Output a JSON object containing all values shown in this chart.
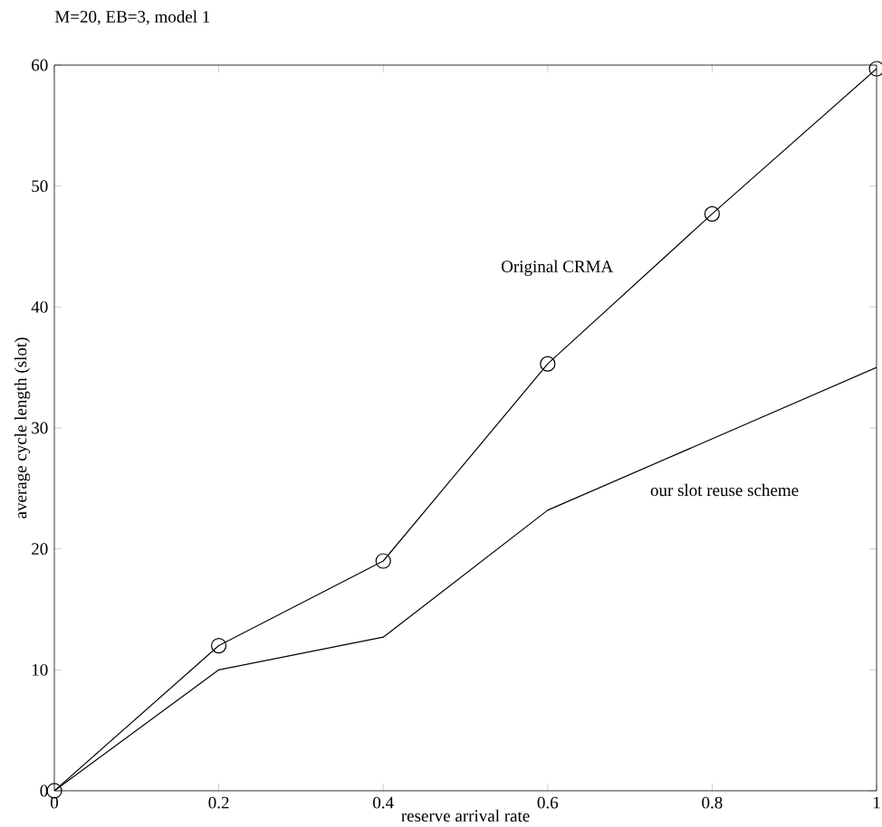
{
  "chart_data": {
    "type": "line",
    "title": "M=20, EB=3, model 1",
    "xlabel": "reserve arrival rate",
    "ylabel": "average cycle length (slot)",
    "x": [
      0,
      0.2,
      0.4,
      0.6,
      0.8,
      1
    ],
    "series": [
      {
        "name": "Original CRMA",
        "color": "#000000",
        "marker": "circle",
        "values": [
          0,
          12,
          19,
          35.3,
          47.7,
          59.7
        ]
      },
      {
        "name": "our slot reuse scheme",
        "color": "#000000",
        "marker": "none",
        "values": [
          0,
          10,
          12.7,
          23.2,
          29.1,
          35
        ]
      }
    ],
    "xlim": [
      0,
      1
    ],
    "ylim": [
      0,
      60
    ],
    "xticks": [
      0,
      0.2,
      0.4,
      0.6,
      0.8,
      1
    ],
    "yticks": [
      0,
      10,
      20,
      30,
      40,
      50,
      60
    ],
    "grid": false,
    "legend": false,
    "line_style": "solid"
  }
}
